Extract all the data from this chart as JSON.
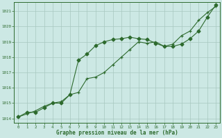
{
  "line1_x": [
    0,
    1,
    2,
    3,
    4,
    5,
    6,
    7,
    8,
    9,
    10,
    11,
    12,
    13,
    14,
    15,
    16,
    17,
    18,
    19,
    20,
    21,
    22,
    23
  ],
  "line1_y": [
    1014.1,
    1014.3,
    1014.5,
    1014.8,
    1015.0,
    1015.1,
    1015.55,
    1015.7,
    1016.6,
    1016.7,
    1017.0,
    1017.5,
    1018.0,
    1018.5,
    1019.0,
    1018.9,
    1019.0,
    1018.7,
    1018.85,
    1019.4,
    1019.7,
    1020.4,
    1020.9,
    1021.3
  ],
  "line2_x": [
    0,
    1,
    2,
    3,
    4,
    5,
    6,
    7,
    8,
    9,
    10,
    11,
    12,
    13,
    14,
    15,
    16,
    17,
    18,
    19,
    20,
    21,
    22,
    23
  ],
  "line2_y": [
    1014.1,
    1014.4,
    1014.4,
    1014.7,
    1015.0,
    1015.0,
    1015.55,
    1017.8,
    1018.2,
    1018.75,
    1019.0,
    1019.15,
    1019.2,
    1019.3,
    1019.2,
    1019.15,
    1018.9,
    1018.7,
    1018.7,
    1018.85,
    1019.2,
    1019.7,
    1020.6,
    1021.4
  ],
  "line_color": "#2d6a2d",
  "bg_color": "#cce8e4",
  "grid_color": "#a8c8c0",
  "xlabel": "Graphe pression niveau de la mer (hPa)",
  "ylim": [
    1013.7,
    1021.6
  ],
  "xlim": [
    -0.5,
    23.5
  ],
  "yticks": [
    1014,
    1015,
    1016,
    1017,
    1018,
    1019,
    1020,
    1021
  ],
  "xticks": [
    0,
    1,
    2,
    3,
    4,
    5,
    6,
    7,
    8,
    9,
    10,
    11,
    12,
    13,
    14,
    15,
    16,
    17,
    18,
    19,
    20,
    21,
    22,
    23
  ]
}
